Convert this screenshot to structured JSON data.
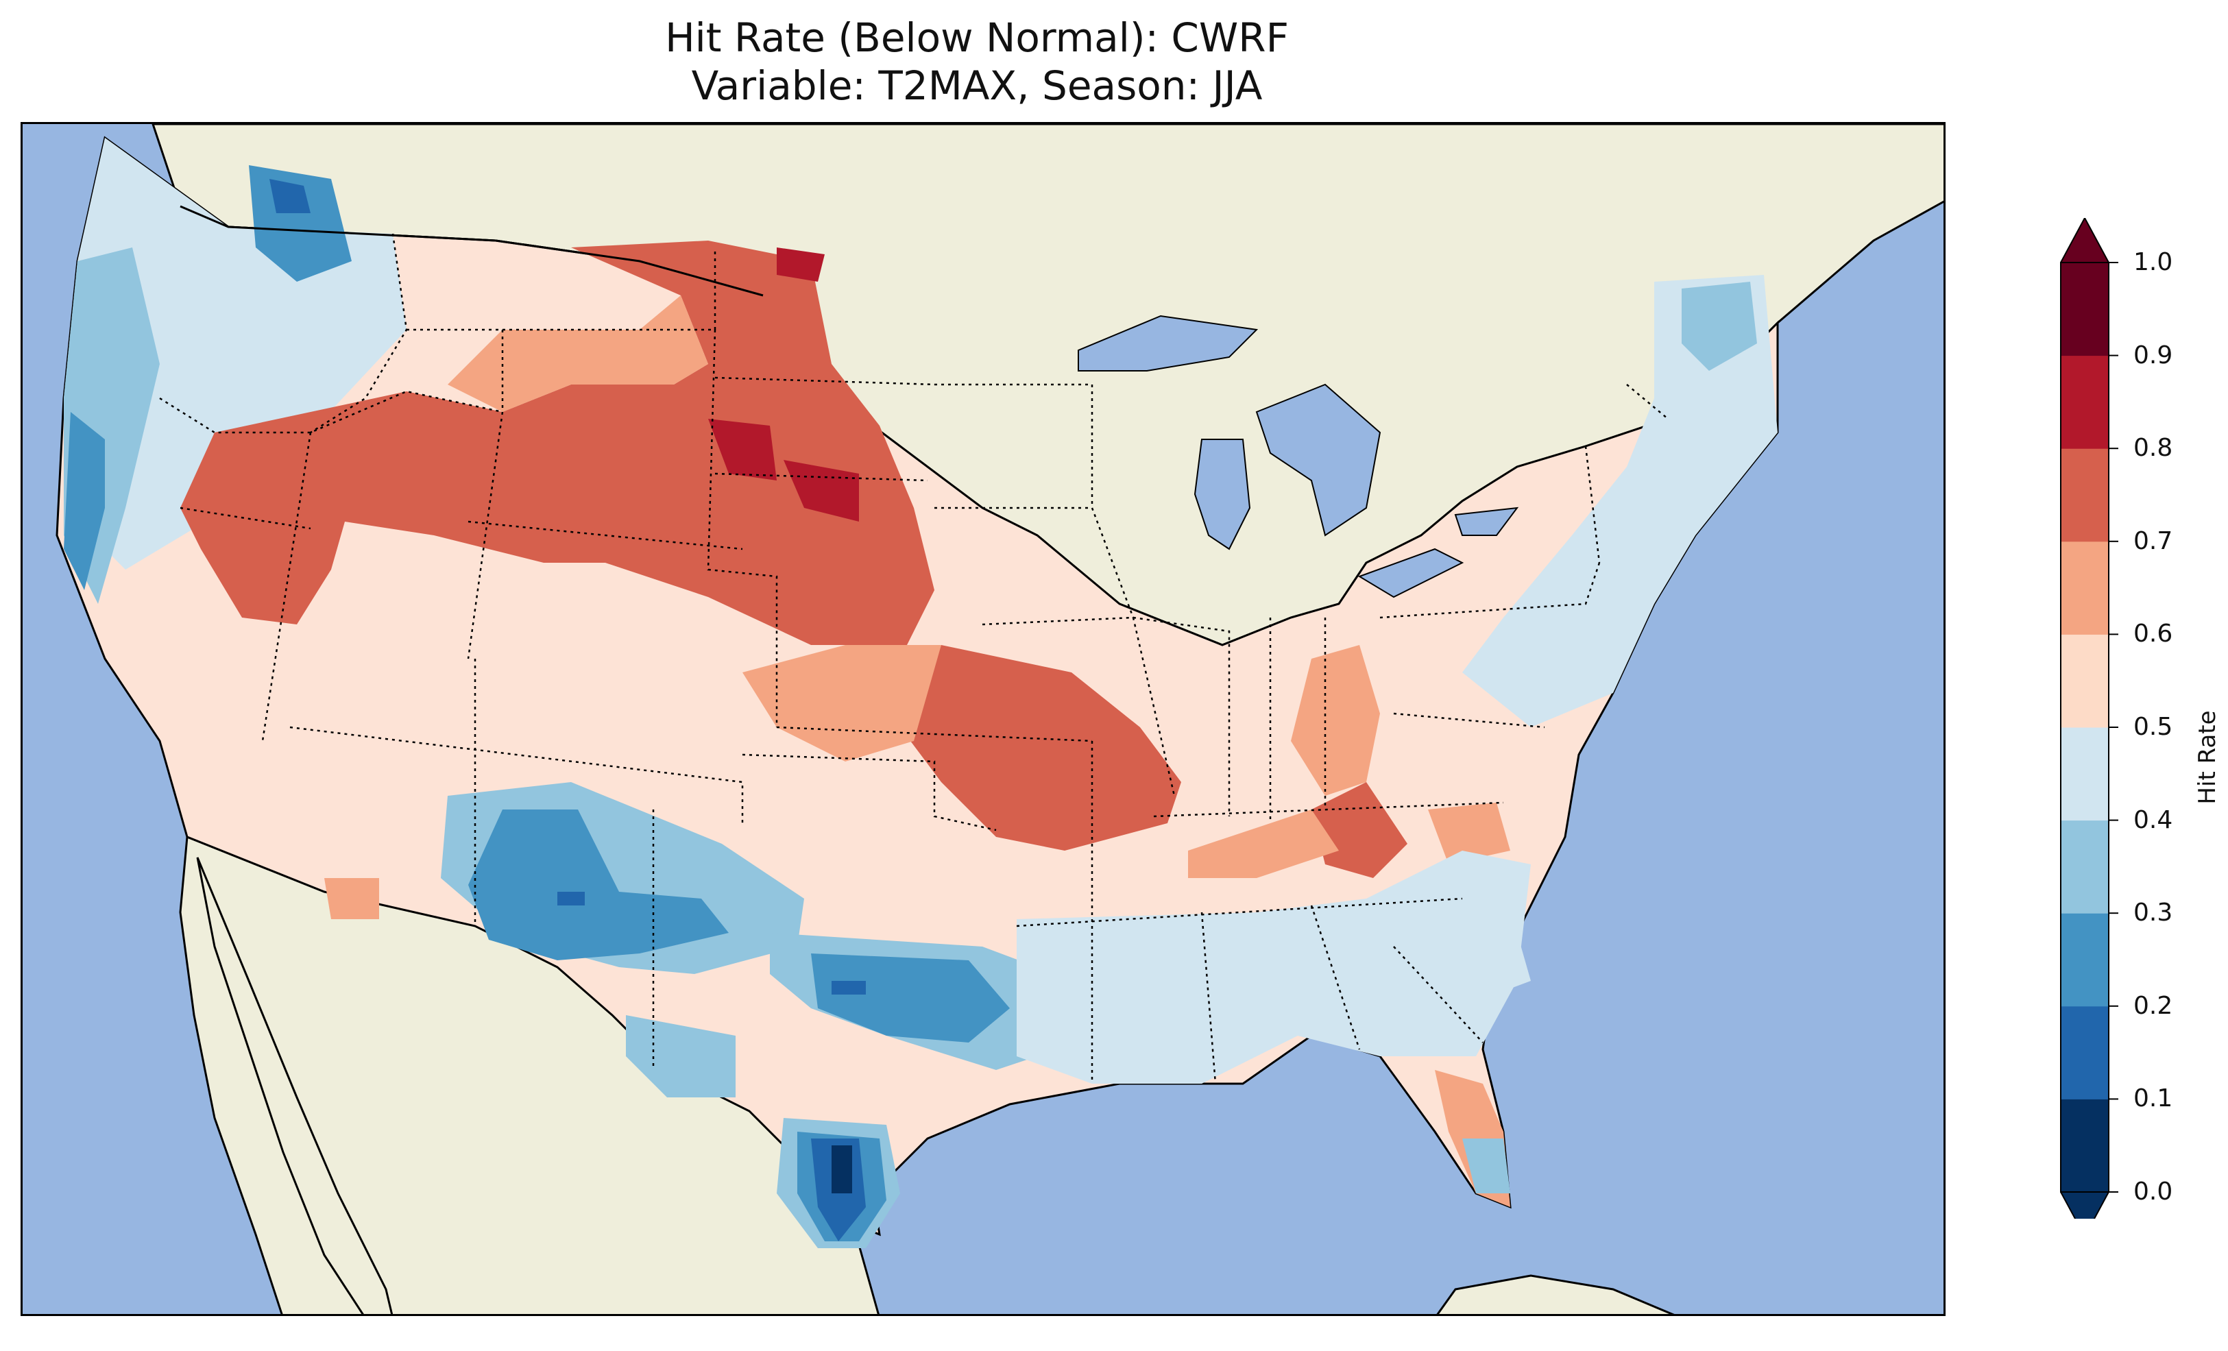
{
  "title": {
    "line1": "Hit Rate (Below Normal): CWRF",
    "line2": "Variable: T2MAX, Season: JJA"
  },
  "colors": {
    "ocean": "#97b6e1",
    "land": "#efeedb",
    "border": "#000000",
    "lakes": "#97b6e1"
  },
  "chart_data": {
    "type": "heatmap",
    "title": "Hit Rate (Below Normal): CWRF — Variable: T2MAX, Season: JJA",
    "region": "Contiguous United States",
    "colorbar": {
      "label": "Hit Rate",
      "extend": "both",
      "boundaries": [
        0.0,
        0.1,
        0.2,
        0.3,
        0.4,
        0.5,
        0.6,
        0.7,
        0.8,
        0.9,
        1.0
      ],
      "tick_labels": [
        "0.0",
        "0.1",
        "0.2",
        "0.3",
        "0.4",
        "0.5",
        "0.6",
        "0.7",
        "0.8",
        "0.9",
        "1.0"
      ],
      "colors": [
        "#053061",
        "#2166ac",
        "#4393c3",
        "#92c5de",
        "#d1e5f0",
        "#fddbc7",
        "#f4a582",
        "#d6604d",
        "#b2182b",
        "#67001f"
      ],
      "under_color": "#053061",
      "over_color": "#67001f"
    },
    "regional_values": [
      {
        "region": "Pacific Northwest coast",
        "value": 0.35
      },
      {
        "region": "Northern Rockies (Idaho)",
        "value": 0.25
      },
      {
        "region": "Montana / North Dakota",
        "value": 0.75
      },
      {
        "region": "South Dakota",
        "value": 0.85
      },
      {
        "region": "Nevada / Utah",
        "value": 0.75
      },
      {
        "region": "Wyoming",
        "value": 0.75
      },
      {
        "region": "Nebraska",
        "value": 0.85
      },
      {
        "region": "Kansas / Missouri",
        "value": 0.75
      },
      {
        "region": "Ohio / Indiana",
        "value": 0.65
      },
      {
        "region": "Tennessee",
        "value": 0.75
      },
      {
        "region": "Arizona / New Mexico",
        "value": 0.25
      },
      {
        "region": "Oklahoma / North Texas",
        "value": 0.25
      },
      {
        "region": "South Texas",
        "value": 0.15
      },
      {
        "region": "Southeast",
        "value": 0.45
      },
      {
        "region": "Florida peninsula",
        "value": 0.55
      },
      {
        "region": "Northeast",
        "value": 0.45
      }
    ]
  }
}
